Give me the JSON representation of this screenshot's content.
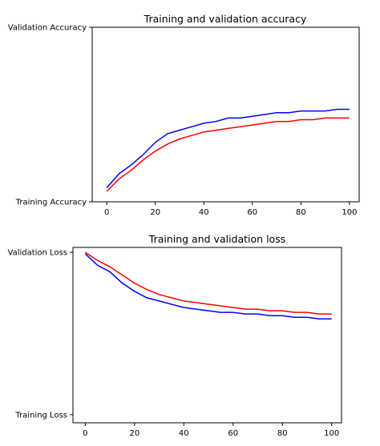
{
  "chart_data": [
    {
      "type": "line",
      "title": "Training and validation accuracy",
      "x_ticks": [
        "0",
        "20",
        "40",
        "60",
        "80",
        "100"
      ],
      "y_ticks": [
        "Training Accuracy",
        "Validation Accuracy"
      ],
      "xlim": [
        -6,
        104
      ],
      "ylim": [
        0,
        1
      ],
      "grid": false,
      "series_colors": [
        "#0000ff",
        "#ff0000"
      ],
      "series": [
        {
          "color": "#0000ff",
          "x": [
            0,
            5,
            10,
            15,
            20,
            25,
            30,
            35,
            40,
            45,
            50,
            55,
            60,
            65,
            70,
            75,
            80,
            85,
            90,
            95,
            100
          ],
          "y": [
            0.08,
            0.16,
            0.21,
            0.27,
            0.34,
            0.39,
            0.41,
            0.43,
            0.45,
            0.46,
            0.48,
            0.48,
            0.49,
            0.5,
            0.51,
            0.51,
            0.52,
            0.52,
            0.52,
            0.53,
            0.53
          ]
        },
        {
          "color": "#ff0000",
          "x": [
            0,
            5,
            10,
            15,
            20,
            25,
            30,
            35,
            40,
            45,
            50,
            55,
            60,
            65,
            70,
            75,
            80,
            85,
            90,
            95,
            100
          ],
          "y": [
            0.06,
            0.13,
            0.18,
            0.24,
            0.29,
            0.33,
            0.36,
            0.38,
            0.4,
            0.41,
            0.42,
            0.43,
            0.44,
            0.45,
            0.46,
            0.46,
            0.47,
            0.47,
            0.48,
            0.48,
            0.48
          ]
        }
      ]
    },
    {
      "type": "line",
      "title": "Training and validation loss",
      "x_ticks": [
        "0",
        "20",
        "40",
        "60",
        "80",
        "100"
      ],
      "y_ticks": [
        "Training Loss",
        "Validation Loss"
      ],
      "xlim": [
        -5,
        104
      ],
      "ylim": [
        -0.05,
        1.03
      ],
      "grid": false,
      "series_colors": [
        "#0000ff",
        "#ff0000"
      ],
      "series": [
        {
          "color": "#0000ff",
          "x": [
            0,
            5,
            10,
            15,
            20,
            25,
            30,
            35,
            40,
            45,
            50,
            55,
            60,
            65,
            70,
            75,
            80,
            85,
            90,
            95,
            100
          ],
          "y": [
            0.99,
            0.92,
            0.88,
            0.81,
            0.76,
            0.72,
            0.7,
            0.68,
            0.66,
            0.65,
            0.64,
            0.63,
            0.63,
            0.62,
            0.62,
            0.61,
            0.61,
            0.6,
            0.6,
            0.59,
            0.59
          ]
        },
        {
          "color": "#ff0000",
          "x": [
            0,
            5,
            10,
            15,
            20,
            25,
            30,
            35,
            40,
            45,
            50,
            55,
            60,
            65,
            70,
            75,
            80,
            85,
            90,
            95,
            100
          ],
          "y": [
            1.0,
            0.95,
            0.91,
            0.86,
            0.81,
            0.77,
            0.74,
            0.72,
            0.7,
            0.69,
            0.68,
            0.67,
            0.66,
            0.65,
            0.65,
            0.64,
            0.64,
            0.63,
            0.63,
            0.62,
            0.62
          ]
        }
      ]
    }
  ]
}
